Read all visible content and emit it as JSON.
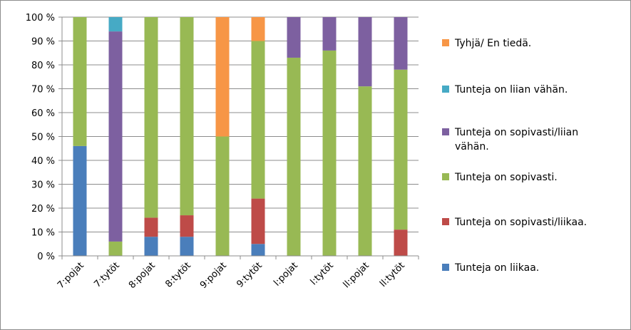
{
  "chart_data": {
    "type": "bar",
    "stacked": true,
    "percent": true,
    "categories": [
      "7:pojat",
      "7:tytöt",
      "8:pojat",
      "8:tytöt",
      "9:pojat",
      "9:tytöt",
      "l:pojat",
      "l:tytöt",
      "ll:pojat",
      "ll:tytöt"
    ],
    "ylim": [
      0,
      100
    ],
    "yticks": [
      "0 %",
      "10 %",
      "20 %",
      "30 %",
      "40 %",
      "50 %",
      "60 %",
      "70 %",
      "80 %",
      "90 %",
      "100 %"
    ],
    "grid": true,
    "legend_position": "right",
    "series": [
      {
        "name": "Tunteja on liikaa.",
        "color": "#4a7ebb",
        "values": [
          46,
          0,
          8,
          8,
          0,
          5,
          0,
          0,
          0,
          0
        ]
      },
      {
        "name": "Tunteja on sopivasti/liikaa.",
        "color": "#be4b48",
        "values": [
          0,
          0,
          8,
          9,
          0,
          19,
          0,
          0,
          0,
          11
        ]
      },
      {
        "name": "Tunteja on sopivasti.",
        "color": "#98b954",
        "values": [
          54,
          6,
          84,
          83,
          50,
          66,
          83,
          86,
          71,
          67
        ]
      },
      {
        "name": "Tunteja on sopivasti/liian vähän.",
        "color": "#7d60a0",
        "values": [
          0,
          88,
          0,
          0,
          0,
          0,
          17,
          14,
          29,
          22
        ]
      },
      {
        "name": "Tunteja on liian vähän.",
        "color": "#46aac5",
        "values": [
          0,
          6,
          0,
          0,
          0,
          0,
          0,
          0,
          0,
          0
        ]
      },
      {
        "name": "Tyhjä/ En tiedä.",
        "color": "#f79646",
        "values": [
          0,
          0,
          0,
          0,
          50,
          10,
          0,
          0,
          0,
          0
        ]
      }
    ],
    "legend_order": [
      5,
      4,
      3,
      2,
      1,
      0
    ]
  }
}
